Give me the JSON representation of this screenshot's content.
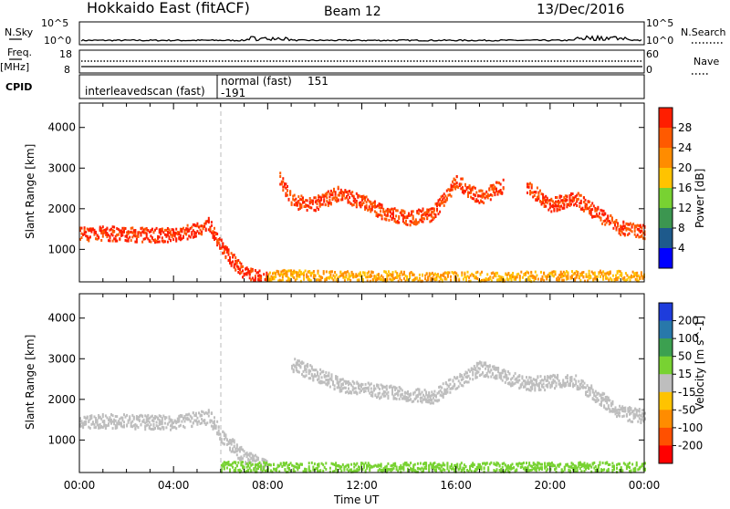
{
  "header": {
    "title": "Hokkaido East (fitACF)",
    "beam": "Beam 12",
    "date": "13/Dec/2016"
  },
  "panels": {
    "nsky": {
      "label": "N.Sky",
      "ticks_left": [
        "10^5",
        "10^0"
      ],
      "ticks_right": [
        "10^5",
        "10^0"
      ],
      "right_label": "N.Search"
    },
    "freq": {
      "label_top": "Freq.",
      "label_unit": "[MHz]",
      "ticks_left": [
        "18",
        "8"
      ],
      "ticks_right": [
        "60",
        "0"
      ],
      "right_label": "Nave"
    },
    "cpid": {
      "label": "CPID",
      "modes": [
        {
          "name": "interleavedscan (fast)",
          "id": "-191"
        },
        {
          "name": "normal (fast)",
          "id": "151"
        }
      ]
    }
  },
  "colorbars": {
    "power": {
      "label": "Power [dB]",
      "ticks": [
        "28",
        "24",
        "20",
        "16",
        "12",
        "8",
        "4"
      ],
      "colors": [
        "#ff1e00",
        "#ff5a00",
        "#ff8c00",
        "#ffc300",
        "#78d232",
        "#3c9650",
        "#1e5a8c",
        "#0000ff"
      ]
    },
    "velocity": {
      "label": "Velocity [m s^-1]",
      "ticks": [
        "200",
        "100",
        "50",
        "15",
        "-15",
        "-50",
        "-100",
        "-200"
      ],
      "colors": [
        "#1e3cdc",
        "#2878aa",
        "#3ca050",
        "#78d232",
        "#bebebe",
        "#ffc300",
        "#ff8c00",
        "#ff5000",
        "#ff0000"
      ]
    }
  },
  "chart_data": [
    {
      "type": "heatmap",
      "name": "power",
      "ylabel": "Slant Range [km]",
      "yticks": [
        "4000",
        "3000",
        "2000",
        "1000"
      ],
      "ylim": [
        200,
        4600
      ],
      "xlim": [
        0,
        24
      ],
      "xticks": [
        "00:00",
        "04:00",
        "08:00",
        "12:00",
        "16:00",
        "20:00",
        "00:00"
      ],
      "xlabel": "Time UT",
      "series": [
        {
          "x": [
            0,
            1,
            2,
            3,
            4,
            5,
            5.5,
            6,
            6.5,
            7,
            8
          ],
          "y": [
            1400,
            1420,
            1400,
            1380,
            1380,
            1500,
            1650,
            1100,
            750,
            450,
            280
          ],
          "value": 28
        },
        {
          "x": [
            8.5,
            9,
            10,
            11,
            12,
            13,
            14,
            15,
            16,
            17,
            18
          ],
          "y": [
            2800,
            2200,
            2150,
            2400,
            2200,
            1900,
            1800,
            1900,
            2700,
            2300,
            2600
          ],
          "value": 26
        },
        {
          "x": [
            19,
            20,
            21,
            22,
            23,
            24
          ],
          "y": [
            2600,
            2100,
            2300,
            1900,
            1550,
            1450
          ],
          "value": 26
        },
        {
          "x": [
            8,
            10,
            12,
            14,
            16,
            18,
            20,
            22,
            24
          ],
          "y": [
            350,
            330,
            320,
            310,
            300,
            300,
            310,
            330,
            320
          ],
          "value": 18
        }
      ]
    },
    {
      "type": "heatmap",
      "name": "velocity",
      "ylabel": "Slant Range [km]",
      "yticks": [
        "4000",
        "3000",
        "2000",
        "1000"
      ],
      "ylim": [
        200,
        4600
      ],
      "xlim": [
        0,
        24
      ],
      "xticks": [
        "00:00",
        "04:00",
        "08:00",
        "12:00",
        "16:00",
        "20:00",
        "00:00"
      ],
      "xlabel": "Time UT",
      "series": [
        {
          "x": [
            0,
            2,
            4,
            5.5,
            6,
            7,
            8
          ],
          "y": [
            1500,
            1480,
            1450,
            1600,
            1150,
            600,
            330
          ],
          "value": 0
        },
        {
          "x": [
            9,
            11,
            13,
            15,
            17,
            19,
            21,
            23,
            24
          ],
          "y": [
            2900,
            2400,
            2200,
            2100,
            2800,
            2400,
            2500,
            1700,
            1600
          ],
          "value": 0
        },
        {
          "x": [
            6,
            9,
            12,
            16,
            20,
            24
          ],
          "y": [
            320,
            300,
            290,
            300,
            300,
            310
          ],
          "value": 30
        }
      ]
    }
  ]
}
